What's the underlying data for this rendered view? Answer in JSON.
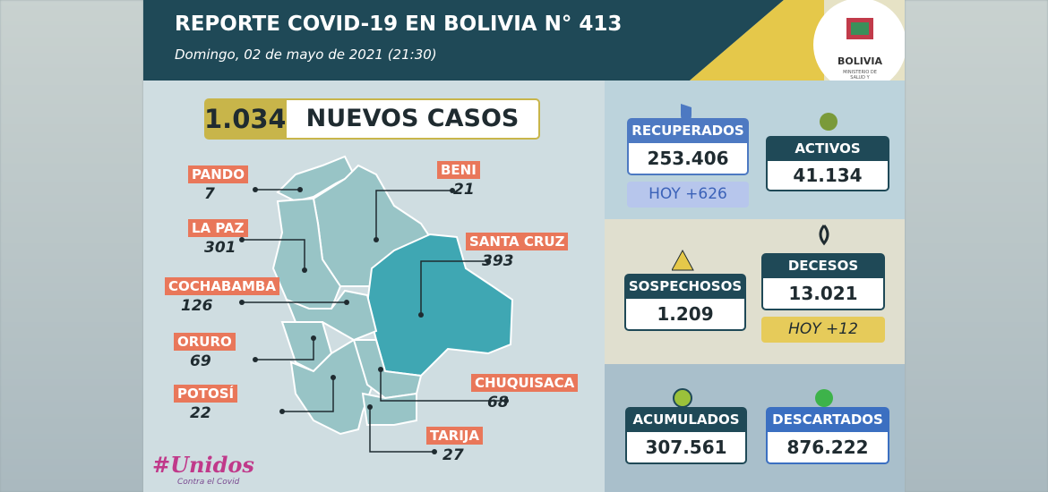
{
  "header": {
    "title": "REPORTE COVID-19 EN BOLIVIA N° 413",
    "subtitle": "Domingo, 02 de mayo de 2021 (21:30)"
  },
  "logo": {
    "name": "BOLIVIA",
    "ministry": "MINISTERIO DE SALUD Y DEPORTES"
  },
  "new_cases": {
    "value": "1.034",
    "label": "NUEVOS CASOS"
  },
  "departments": [
    {
      "name": "PANDO",
      "cases": "7"
    },
    {
      "name": "LA PAZ",
      "cases": "301"
    },
    {
      "name": "COCHABAMBA",
      "cases": "126"
    },
    {
      "name": "ORURO",
      "cases": "69"
    },
    {
      "name": "POTOSÍ",
      "cases": "22"
    },
    {
      "name": "BENI",
      "cases": "21"
    },
    {
      "name": "SANTA CRUZ",
      "cases": "393"
    },
    {
      "name": "CHUQUISACA",
      "cases": "68"
    },
    {
      "name": "TARIJA",
      "cases": "27"
    }
  ],
  "stats": {
    "recovered": {
      "label": "RECUPERADOS",
      "value": "253.406",
      "today": "HOY +626"
    },
    "active": {
      "label": "ACTIVOS",
      "value": "41.134"
    },
    "suspected": {
      "label": "SOSPECHOSOS",
      "value": "1.209"
    },
    "deaths": {
      "label": "DECESOS",
      "value": "13.021",
      "today": "HOY +12"
    },
    "accumulated": {
      "label": "ACUMULADOS",
      "value": "307.561"
    },
    "discarded": {
      "label": "DESCARTADOS",
      "value": "876.222"
    }
  },
  "campaign": {
    "tag": "#Unidos",
    "slogan": "Contra el Covid"
  }
}
